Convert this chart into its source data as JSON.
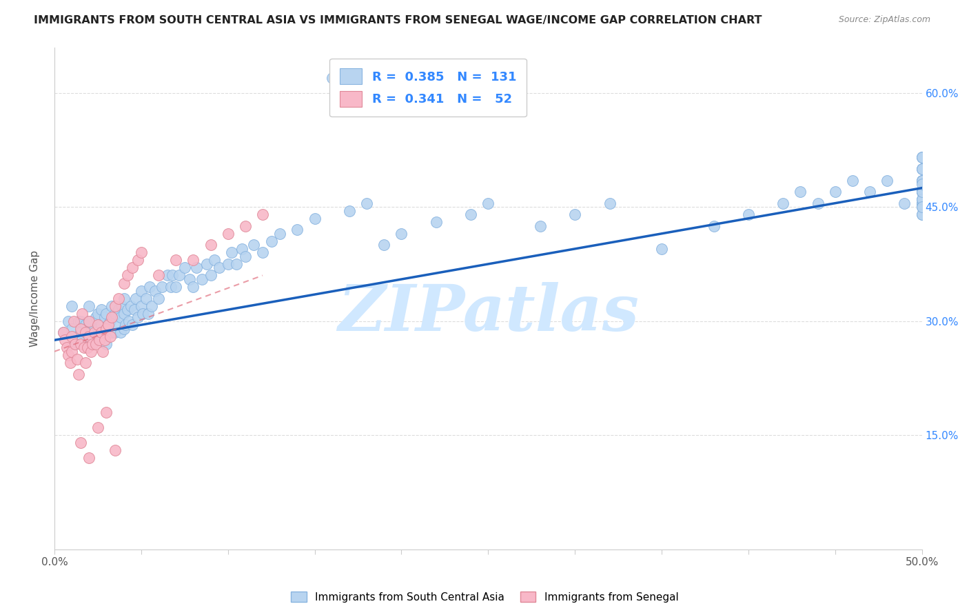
{
  "title": "IMMIGRANTS FROM SOUTH CENTRAL ASIA VS IMMIGRANTS FROM SENEGAL WAGE/INCOME GAP CORRELATION CHART",
  "source": "Source: ZipAtlas.com",
  "ylabel": "Wage/Income Gap",
  "ytick_labels": [
    "15.0%",
    "30.0%",
    "45.0%",
    "60.0%"
  ],
  "ytick_values": [
    0.15,
    0.3,
    0.45,
    0.6
  ],
  "xlim": [
    0.0,
    0.5
  ],
  "ylim": [
    0.0,
    0.66
  ],
  "blue_color": "#b8d4f0",
  "blue_edge": "#88b4e0",
  "pink_color": "#f8b8c8",
  "pink_edge": "#e08898",
  "blue_line_color": "#1a5fbb",
  "pink_line_color": "#e06878",
  "watermark": "ZIPatlas",
  "watermark_color": "#d0e8ff",
  "bg_color": "#ffffff",
  "blue_line_x0": 0.0,
  "blue_line_y0": 0.275,
  "blue_line_x1": 0.5,
  "blue_line_y1": 0.475,
  "pink_line_x0": 0.0,
  "pink_line_y0": 0.26,
  "pink_line_x1": 0.12,
  "pink_line_y1": 0.36,
  "blue_x": [
    0.005,
    0.008,
    0.01,
    0.01,
    0.012,
    0.014,
    0.015,
    0.015,
    0.016,
    0.018,
    0.02,
    0.02,
    0.02,
    0.022,
    0.023,
    0.024,
    0.025,
    0.025,
    0.026,
    0.027,
    0.027,
    0.028,
    0.029,
    0.03,
    0.03,
    0.03,
    0.031,
    0.032,
    0.033,
    0.033,
    0.034,
    0.035,
    0.035,
    0.036,
    0.037,
    0.038,
    0.038,
    0.039,
    0.04,
    0.04,
    0.04,
    0.041,
    0.042,
    0.043,
    0.044,
    0.045,
    0.046,
    0.047,
    0.048,
    0.05,
    0.05,
    0.051,
    0.053,
    0.054,
    0.055,
    0.056,
    0.058,
    0.06,
    0.062,
    0.065,
    0.067,
    0.068,
    0.07,
    0.072,
    0.075,
    0.078,
    0.08,
    0.082,
    0.085,
    0.088,
    0.09,
    0.092,
    0.095,
    0.1,
    0.102,
    0.105,
    0.108,
    0.11,
    0.115,
    0.12,
    0.125,
    0.13,
    0.14,
    0.15,
    0.16,
    0.17,
    0.18,
    0.19,
    0.2,
    0.22,
    0.24,
    0.25,
    0.28,
    0.3,
    0.32,
    0.35,
    0.38,
    0.4,
    0.42,
    0.43,
    0.44,
    0.45,
    0.46,
    0.47,
    0.48,
    0.49,
    0.5,
    0.5,
    0.5,
    0.5,
    0.5,
    0.5,
    0.5,
    0.5,
    0.5,
    0.5,
    0.5,
    0.5,
    0.5,
    0.5,
    0.5,
    0.5,
    0.5,
    0.5,
    0.5,
    0.5,
    0.5,
    0.5,
    0.5,
    0.5,
    0.5
  ],
  "blue_y": [
    0.285,
    0.3,
    0.29,
    0.32,
    0.27,
    0.3,
    0.285,
    0.3,
    0.275,
    0.295,
    0.28,
    0.3,
    0.32,
    0.27,
    0.29,
    0.305,
    0.29,
    0.31,
    0.28,
    0.295,
    0.315,
    0.285,
    0.305,
    0.27,
    0.29,
    0.31,
    0.295,
    0.3,
    0.285,
    0.32,
    0.305,
    0.285,
    0.31,
    0.295,
    0.315,
    0.285,
    0.305,
    0.32,
    0.29,
    0.31,
    0.33,
    0.295,
    0.315,
    0.3,
    0.32,
    0.295,
    0.315,
    0.33,
    0.305,
    0.32,
    0.34,
    0.31,
    0.33,
    0.31,
    0.345,
    0.32,
    0.34,
    0.33,
    0.345,
    0.36,
    0.345,
    0.36,
    0.345,
    0.36,
    0.37,
    0.355,
    0.345,
    0.37,
    0.355,
    0.375,
    0.36,
    0.38,
    0.37,
    0.375,
    0.39,
    0.375,
    0.395,
    0.385,
    0.4,
    0.39,
    0.405,
    0.415,
    0.42,
    0.435,
    0.62,
    0.445,
    0.455,
    0.4,
    0.415,
    0.43,
    0.44,
    0.455,
    0.425,
    0.44,
    0.455,
    0.395,
    0.425,
    0.44,
    0.455,
    0.47,
    0.455,
    0.47,
    0.485,
    0.47,
    0.485,
    0.455,
    0.47,
    0.485,
    0.5,
    0.515,
    0.485,
    0.47,
    0.455,
    0.47,
    0.5,
    0.515,
    0.485,
    0.47,
    0.455,
    0.47,
    0.5,
    0.515,
    0.485,
    0.46,
    0.44,
    0.45,
    0.46,
    0.47,
    0.48,
    0.44,
    0.45
  ],
  "pink_x": [
    0.005,
    0.006,
    0.007,
    0.008,
    0.009,
    0.01,
    0.01,
    0.011,
    0.012,
    0.013,
    0.014,
    0.015,
    0.015,
    0.016,
    0.017,
    0.018,
    0.018,
    0.019,
    0.02,
    0.02,
    0.021,
    0.022,
    0.023,
    0.024,
    0.025,
    0.026,
    0.027,
    0.028,
    0.029,
    0.03,
    0.031,
    0.032,
    0.033,
    0.035,
    0.037,
    0.04,
    0.042,
    0.045,
    0.048,
    0.05,
    0.06,
    0.07,
    0.08,
    0.09,
    0.1,
    0.11,
    0.12,
    0.03,
    0.025,
    0.015,
    0.02,
    0.035
  ],
  "pink_y": [
    0.285,
    0.275,
    0.265,
    0.255,
    0.245,
    0.26,
    0.28,
    0.3,
    0.27,
    0.25,
    0.23,
    0.27,
    0.29,
    0.31,
    0.265,
    0.245,
    0.285,
    0.265,
    0.3,
    0.28,
    0.26,
    0.27,
    0.285,
    0.27,
    0.295,
    0.275,
    0.285,
    0.26,
    0.275,
    0.29,
    0.295,
    0.28,
    0.305,
    0.32,
    0.33,
    0.35,
    0.36,
    0.37,
    0.38,
    0.39,
    0.36,
    0.38,
    0.38,
    0.4,
    0.415,
    0.425,
    0.44,
    0.18,
    0.16,
    0.14,
    0.12,
    0.13
  ]
}
